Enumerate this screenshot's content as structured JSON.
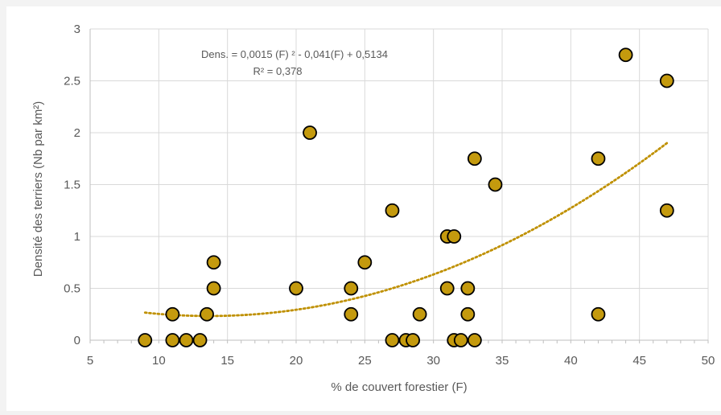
{
  "chart_data": {
    "type": "scatter",
    "title": "",
    "xlabel": "% de couvert forestier (F)",
    "ylabel": "Densité des terriers (Nb par km²)",
    "xlim": [
      5,
      50
    ],
    "ylim": [
      0,
      3
    ],
    "x_ticks": [
      "5",
      "10",
      "15",
      "20",
      "25",
      "30",
      "35",
      "40",
      "45",
      "50"
    ],
    "y_ticks": [
      "0",
      "0.5",
      "1",
      "1.5",
      "2",
      "2.5",
      "3"
    ],
    "grid": true,
    "legend": "none",
    "annotation": {
      "equation": "Dens. = 0,0015 (F) ² - 0,041(F) + 0,5134",
      "r_squared": "R² = 0,378"
    },
    "trendline": {
      "kind": "polynomial order 2",
      "coefficients": [
        0.0015,
        -0.041,
        0.5134
      ],
      "x_range": [
        9,
        47
      ],
      "color": "#BF9000",
      "style": "dotted"
    },
    "marker_color": "#C49A0E",
    "marker_edge_color": "#000000",
    "series": [
      {
        "points": [
          [
            9,
            0
          ],
          [
            11,
            0.25
          ],
          [
            11,
            0
          ],
          [
            12,
            0
          ],
          [
            13,
            0
          ],
          [
            13.5,
            0.25
          ],
          [
            14,
            0.75
          ],
          [
            14,
            0.5
          ],
          [
            20,
            0.5
          ],
          [
            21,
            2
          ],
          [
            24,
            0.5
          ],
          [
            24,
            0.25
          ],
          [
            25,
            0.75
          ],
          [
            27,
            1.25
          ],
          [
            27,
            0
          ],
          [
            28,
            0
          ],
          [
            28.5,
            0
          ],
          [
            29,
            0.25
          ],
          [
            31,
            1
          ],
          [
            31,
            0.5
          ],
          [
            31.5,
            1
          ],
          [
            31.5,
            0
          ],
          [
            32,
            0
          ],
          [
            32.5,
            0.5
          ],
          [
            32.5,
            0.25
          ],
          [
            33,
            1.75
          ],
          [
            33,
            0
          ],
          [
            34.5,
            1.5
          ],
          [
            42,
            1.75
          ],
          [
            42,
            0.25
          ],
          [
            44,
            2.75
          ],
          [
            47,
            2.5
          ],
          [
            47,
            1.25
          ]
        ]
      }
    ]
  }
}
